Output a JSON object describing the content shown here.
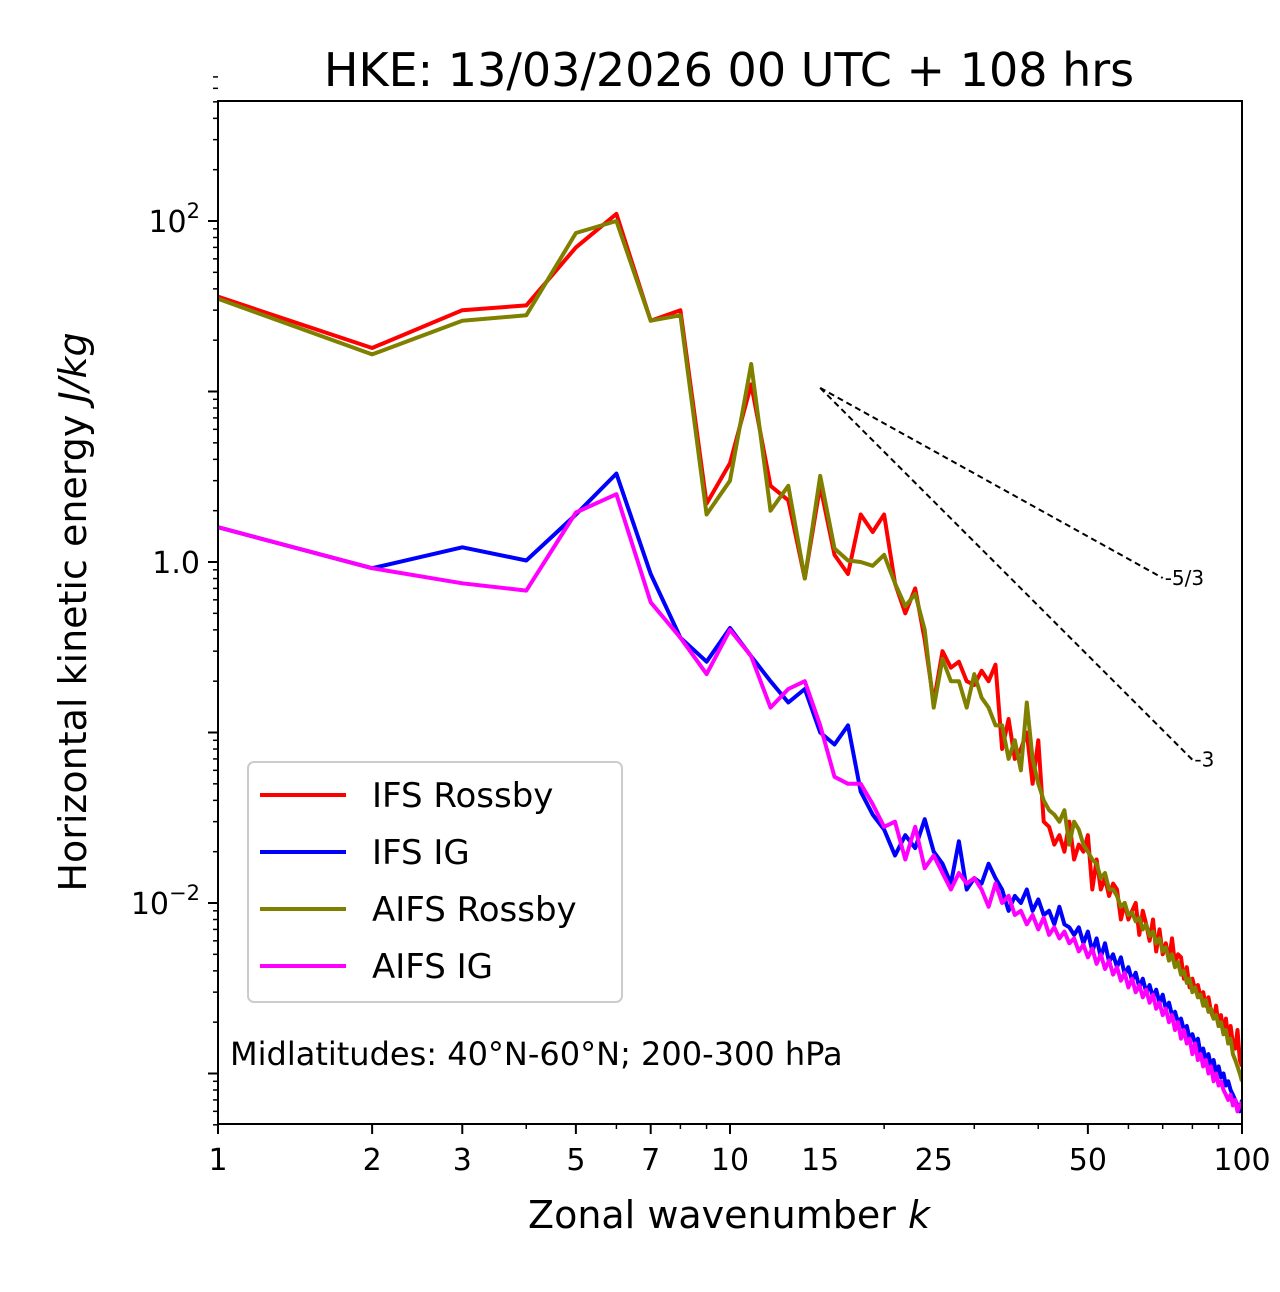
{
  "chart_data": {
    "type": "line",
    "title": "HKE: 13/03/2026 00 UTC + 108 hrs",
    "xlabel": "Zonal wavenumber",
    "xlabel_var": "k",
    "ylabel": "Horizontal kinetic energy",
    "ylabel_units": "J/kg",
    "xscale": "log",
    "yscale": "log",
    "xlim": [
      1,
      100
    ],
    "ylim": [
      0.0005,
      700
    ],
    "xticks": [
      {
        "value": 1,
        "label": "1"
      },
      {
        "value": 2,
        "label": "2"
      },
      {
        "value": 3,
        "label": "3"
      },
      {
        "value": 5,
        "label": "5"
      },
      {
        "value": 7,
        "label": "7"
      },
      {
        "value": 10,
        "label": "10"
      },
      {
        "value": 15,
        "label": "15"
      },
      {
        "value": 25,
        "label": "25"
      },
      {
        "value": 50,
        "label": "50"
      },
      {
        "value": 100,
        "label": "100"
      }
    ],
    "yticks": [
      {
        "value": 100,
        "base": "10",
        "exp": "2"
      },
      {
        "value": 1,
        "base": "1.0",
        "exp": ""
      },
      {
        "value": 0.01,
        "base": "10",
        "exp": "−2"
      }
    ],
    "annotation": "Midlatitudes: 40°N-60°N; 200-300 hPa",
    "legend_position": "lower-left",
    "reference_lines": [
      {
        "label": "-5/3",
        "slope": -1.6667,
        "x0": 15,
        "y0": 10.5,
        "x1": 70
      },
      {
        "label": "-3",
        "slope": -3,
        "x0": 15,
        "y0": 10.5,
        "x1": 80
      }
    ],
    "series": [
      {
        "name": "IFS Rossby",
        "color": "#ff0000",
        "x": [
          1,
          2,
          3,
          4,
          5,
          6,
          7,
          8,
          9,
          10,
          11,
          12,
          13,
          14,
          15,
          16,
          17,
          18,
          19,
          20,
          21,
          22,
          23,
          24,
          25,
          26,
          27,
          28,
          29,
          30,
          31,
          32,
          33,
          34,
          35,
          36,
          37,
          38,
          39,
          40,
          41,
          42,
          43,
          44,
          45,
          46,
          47,
          48,
          49,
          50,
          51,
          52,
          53,
          54,
          55,
          56,
          57,
          58,
          59,
          60,
          61,
          62,
          63,
          64,
          65,
          66,
          67,
          68,
          69,
          70,
          71,
          72,
          73,
          74,
          75,
          76,
          77,
          78,
          79,
          80,
          81,
          82,
          83,
          84,
          85,
          86,
          87,
          88,
          89,
          90,
          91,
          92,
          93,
          94,
          95,
          96,
          97,
          98,
          99,
          100
        ],
        "y": [
          36,
          18,
          30,
          32,
          70,
          110,
          26,
          30,
          2.2,
          3.8,
          11,
          2.8,
          2.3,
          0.8,
          2.8,
          1.1,
          0.85,
          1.9,
          1.5,
          1.9,
          0.75,
          0.5,
          0.7,
          0.35,
          0.15,
          0.3,
          0.24,
          0.26,
          0.2,
          0.19,
          0.23,
          0.2,
          0.25,
          0.08,
          0.12,
          0.07,
          0.08,
          0.1,
          0.05,
          0.09,
          0.03,
          0.028,
          0.022,
          0.025,
          0.02,
          0.03,
          0.018,
          0.022,
          0.02,
          0.025,
          0.012,
          0.018,
          0.012,
          0.014,
          0.011,
          0.013,
          0.012,
          0.008,
          0.01,
          0.008,
          0.009,
          0.01,
          0.0065,
          0.009,
          0.0075,
          0.006,
          0.008,
          0.0052,
          0.007,
          0.005,
          0.0058,
          0.0046,
          0.0062,
          0.0044,
          0.005,
          0.0048,
          0.0036,
          0.0042,
          0.0032,
          0.0036,
          0.0031,
          0.0033,
          0.0028,
          0.003,
          0.0025,
          0.0028,
          0.0023,
          0.0021,
          0.0025,
          0.0019,
          0.0022,
          0.0017,
          0.0021,
          0.0016,
          0.0019,
          0.0015,
          0.0014,
          0.0018,
          0.0012,
          0.0011
        ]
      },
      {
        "name": "IFS IG",
        "color": "#0000ff",
        "x": [
          1,
          2,
          3,
          4,
          5,
          6,
          7,
          8,
          9,
          10,
          11,
          12,
          13,
          14,
          15,
          16,
          17,
          18,
          19,
          20,
          21,
          22,
          23,
          24,
          25,
          26,
          27,
          28,
          29,
          30,
          31,
          32,
          33,
          34,
          35,
          36,
          37,
          38,
          39,
          40,
          41,
          42,
          43,
          44,
          45,
          46,
          47,
          48,
          49,
          50,
          51,
          52,
          53,
          54,
          55,
          56,
          57,
          58,
          59,
          60,
          61,
          62,
          63,
          64,
          65,
          66,
          67,
          68,
          69,
          70,
          71,
          72,
          73,
          74,
          75,
          76,
          77,
          78,
          79,
          80,
          81,
          82,
          83,
          84,
          85,
          86,
          87,
          88,
          89,
          90,
          91,
          92,
          93,
          94,
          95,
          96,
          97,
          98,
          99,
          100
        ],
        "y": [
          1.6,
          0.92,
          1.22,
          1.02,
          1.9,
          3.3,
          0.85,
          0.36,
          0.26,
          0.41,
          0.28,
          0.2,
          0.15,
          0.18,
          0.1,
          0.085,
          0.11,
          0.045,
          0.033,
          0.027,
          0.019,
          0.025,
          0.021,
          0.031,
          0.02,
          0.017,
          0.013,
          0.023,
          0.012,
          0.014,
          0.013,
          0.017,
          0.014,
          0.012,
          0.009,
          0.011,
          0.01,
          0.012,
          0.009,
          0.0105,
          0.0085,
          0.009,
          0.0075,
          0.0095,
          0.0075,
          0.0072,
          0.0065,
          0.0072,
          0.0058,
          0.0068,
          0.0052,
          0.0062,
          0.0048,
          0.0058,
          0.0045,
          0.005,
          0.0042,
          0.0048,
          0.0038,
          0.0042,
          0.0035,
          0.0039,
          0.0032,
          0.0036,
          0.003,
          0.0033,
          0.0028,
          0.0031,
          0.0026,
          0.0029,
          0.0024,
          0.0026,
          0.0022,
          0.0023,
          0.002,
          0.0021,
          0.0018,
          0.0019,
          0.0016,
          0.0017,
          0.0015,
          0.0016,
          0.0013,
          0.0014,
          0.0012,
          0.0013,
          0.0011,
          0.0012,
          0.001,
          0.0011,
          0.00095,
          0.001,
          0.00085,
          0.0009,
          0.0008,
          0.00075,
          0.0007,
          0.00065,
          0.0006,
          0.0007
        ]
      },
      {
        "name": "AIFS Rossby",
        "color": "#808000",
        "x": [
          1,
          2,
          3,
          4,
          5,
          6,
          7,
          8,
          9,
          10,
          11,
          12,
          13,
          14,
          15,
          16,
          17,
          18,
          19,
          20,
          21,
          22,
          23,
          24,
          25,
          26,
          27,
          28,
          29,
          30,
          31,
          32,
          33,
          34,
          35,
          36,
          37,
          38,
          39,
          40,
          41,
          42,
          43,
          44,
          45,
          46,
          47,
          48,
          49,
          50,
          51,
          52,
          53,
          54,
          55,
          56,
          57,
          58,
          59,
          60,
          61,
          62,
          63,
          64,
          65,
          66,
          67,
          68,
          69,
          70,
          71,
          72,
          73,
          74,
          75,
          76,
          77,
          78,
          79,
          80,
          81,
          82,
          83,
          84,
          85,
          86,
          87,
          88,
          89,
          90,
          91,
          92,
          93,
          94,
          95,
          96,
          97,
          98,
          99,
          100
        ],
        "y": [
          35,
          16.5,
          26,
          28,
          85,
          100,
          26,
          28,
          1.9,
          3,
          14.5,
          2,
          2.8,
          0.8,
          3.2,
          1.2,
          1.02,
          1.0,
          0.95,
          1.1,
          0.75,
          0.55,
          0.65,
          0.4,
          0.14,
          0.27,
          0.2,
          0.2,
          0.14,
          0.22,
          0.16,
          0.14,
          0.11,
          0.11,
          0.07,
          0.09,
          0.06,
          0.15,
          0.07,
          0.05,
          0.04,
          0.035,
          0.033,
          0.03,
          0.035,
          0.022,
          0.03,
          0.027,
          0.022,
          0.02,
          0.018,
          0.017,
          0.014,
          0.015,
          0.012,
          0.012,
          0.011,
          0.0095,
          0.01,
          0.0085,
          0.0088,
          0.0078,
          0.0082,
          0.007,
          0.0075,
          0.0064,
          0.0068,
          0.0058,
          0.0062,
          0.0052,
          0.0055,
          0.0046,
          0.005,
          0.0042,
          0.0045,
          0.0038,
          0.004,
          0.0034,
          0.0036,
          0.003,
          0.0032,
          0.0028,
          0.0029,
          0.0025,
          0.0027,
          0.0023,
          0.0024,
          0.0021,
          0.0022,
          0.0019,
          0.002,
          0.0017,
          0.0018,
          0.0015,
          0.0016,
          0.0013,
          0.0012,
          0.0011,
          0.001,
          0.0009
        ]
      },
      {
        "name": "AIFS IG",
        "color": "#ff00ff",
        "x": [
          1,
          2,
          3,
          4,
          5,
          6,
          7,
          8,
          9,
          10,
          11,
          12,
          13,
          14,
          15,
          16,
          17,
          18,
          19,
          20,
          21,
          22,
          23,
          24,
          25,
          26,
          27,
          28,
          29,
          30,
          31,
          32,
          33,
          34,
          35,
          36,
          37,
          38,
          39,
          40,
          41,
          42,
          43,
          44,
          45,
          46,
          47,
          48,
          49,
          50,
          51,
          52,
          53,
          54,
          55,
          56,
          57,
          58,
          59,
          60,
          61,
          62,
          63,
          64,
          65,
          66,
          67,
          68,
          69,
          70,
          71,
          72,
          73,
          74,
          75,
          76,
          77,
          78,
          79,
          80,
          81,
          82,
          83,
          84,
          85,
          86,
          87,
          88,
          89,
          90,
          91,
          92,
          93,
          94,
          95,
          96,
          97,
          98,
          99,
          100
        ],
        "y": [
          1.6,
          0.92,
          0.75,
          0.68,
          1.95,
          2.5,
          0.58,
          0.36,
          0.22,
          0.4,
          0.28,
          0.14,
          0.18,
          0.2,
          0.11,
          0.055,
          0.05,
          0.05,
          0.038,
          0.028,
          0.03,
          0.018,
          0.028,
          0.016,
          0.019,
          0.015,
          0.012,
          0.015,
          0.013,
          0.014,
          0.012,
          0.0095,
          0.013,
          0.01,
          0.011,
          0.0085,
          0.009,
          0.0075,
          0.0085,
          0.007,
          0.0082,
          0.0065,
          0.0072,
          0.0062,
          0.0068,
          0.0058,
          0.0062,
          0.0052,
          0.0057,
          0.0048,
          0.0054,
          0.0044,
          0.005,
          0.0041,
          0.0046,
          0.0038,
          0.0042,
          0.0035,
          0.0039,
          0.0032,
          0.0036,
          0.003,
          0.0033,
          0.0028,
          0.0031,
          0.0026,
          0.0029,
          0.0024,
          0.0026,
          0.0022,
          0.0024,
          0.002,
          0.0022,
          0.0018,
          0.002,
          0.0016,
          0.0018,
          0.0015,
          0.0016,
          0.0013,
          0.0015,
          0.0012,
          0.0013,
          0.0011,
          0.0012,
          0.001,
          0.0011,
          0.0009,
          0.001,
          0.00085,
          0.0009,
          0.0008,
          0.00075,
          0.0007,
          0.00075,
          0.00065,
          0.0007,
          0.0006,
          0.00065,
          0.00068
        ]
      }
    ]
  }
}
